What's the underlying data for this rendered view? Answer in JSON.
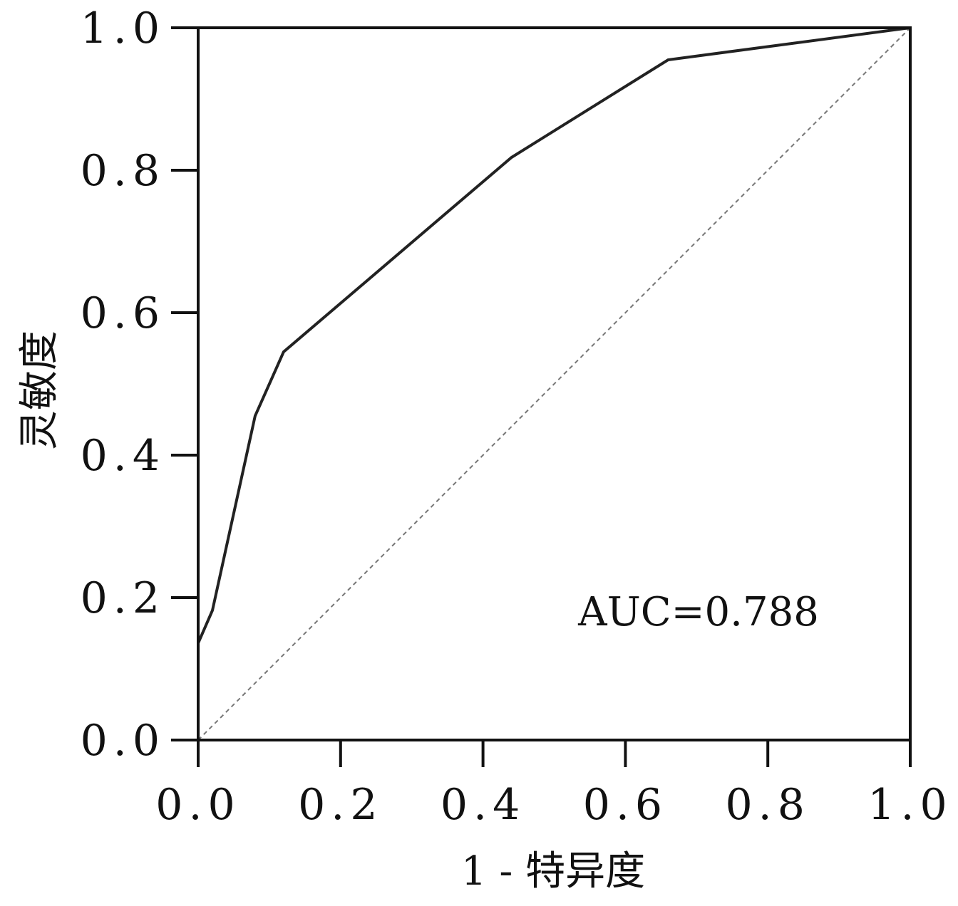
{
  "chart_data": {
    "type": "line",
    "title": "",
    "xlabel": "1 - 特异度",
    "ylabel": "灵敏度",
    "xlim": [
      0,
      1
    ],
    "ylim": [
      0,
      1
    ],
    "xticks": [
      "0.0",
      "0.2",
      "0.4",
      "0.6",
      "0.8",
      "1.0"
    ],
    "yticks": [
      "0.0",
      "0.2",
      "0.4",
      "0.6",
      "0.8",
      "1.0"
    ],
    "grid": false,
    "series": [
      {
        "x": [
          0.0,
          0.0,
          0.02,
          0.08,
          0.12,
          0.44,
          0.66,
          1.0
        ],
        "y": [
          0.0,
          0.136,
          0.182,
          0.455,
          0.545,
          0.818,
          0.955,
          1.0
        ],
        "color": "#222222",
        "style": "solid"
      }
    ],
    "reference_line": {
      "x": [
        0,
        1
      ],
      "y": [
        0,
        1
      ],
      "color": "#777777",
      "style": "dashed"
    },
    "annotations": [
      {
        "text": "AUC=0.788"
      }
    ]
  }
}
